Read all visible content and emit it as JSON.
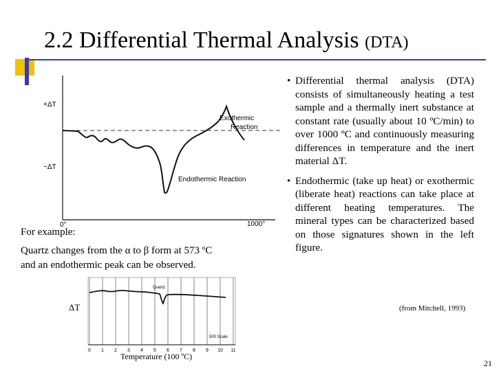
{
  "slide": {
    "title_main": "2.2 Differential Thermal Analysis ",
    "title_small": "(DTA)",
    "number": "21"
  },
  "bullets": [
    "Differential thermal analysis (DTA) consists of simultaneously heating a test sample and a thermally inert substance at constant rate (usually about 10 ºC/min) to over 1000 ºC and continuously measuring differences in temperature and the inert material ΔT.",
    "Endothermic (take up heat) or exothermic (liberate heat) reactions can take place at different heating temperatures. The mineral types can be characterized based on those signatures shown in the left figure."
  ],
  "citation": "(from Mitchell, 1993)",
  "example": {
    "heading": "For example:",
    "line1": "Quartz changes from the α to β form at 573 ºC",
    "line2": "and an endothermic peak can be observed."
  },
  "figure1": {
    "y_pos_label": "+ΔT",
    "y_neg_label": "−ΔT",
    "x_start_label": "0°",
    "x_end_label": "1000°",
    "exo_label_1": "Exothermic",
    "exo_label_2": "Reaction",
    "endo_label": "Endothermic Reaction"
  },
  "figure2": {
    "ylabel": "ΔT",
    "xlabel": "Temperature (100 ºC)",
    "quartz_label": "Quartz",
    "scale_label": "500 Scale",
    "ticks": [
      "0",
      "1",
      "2",
      "3",
      "4",
      "5",
      "6",
      "7",
      "8",
      "9",
      "10",
      "11"
    ]
  },
  "colors": {
    "accent_blue": "#3a3ab0",
    "accent_yellow": "#f2c200"
  }
}
